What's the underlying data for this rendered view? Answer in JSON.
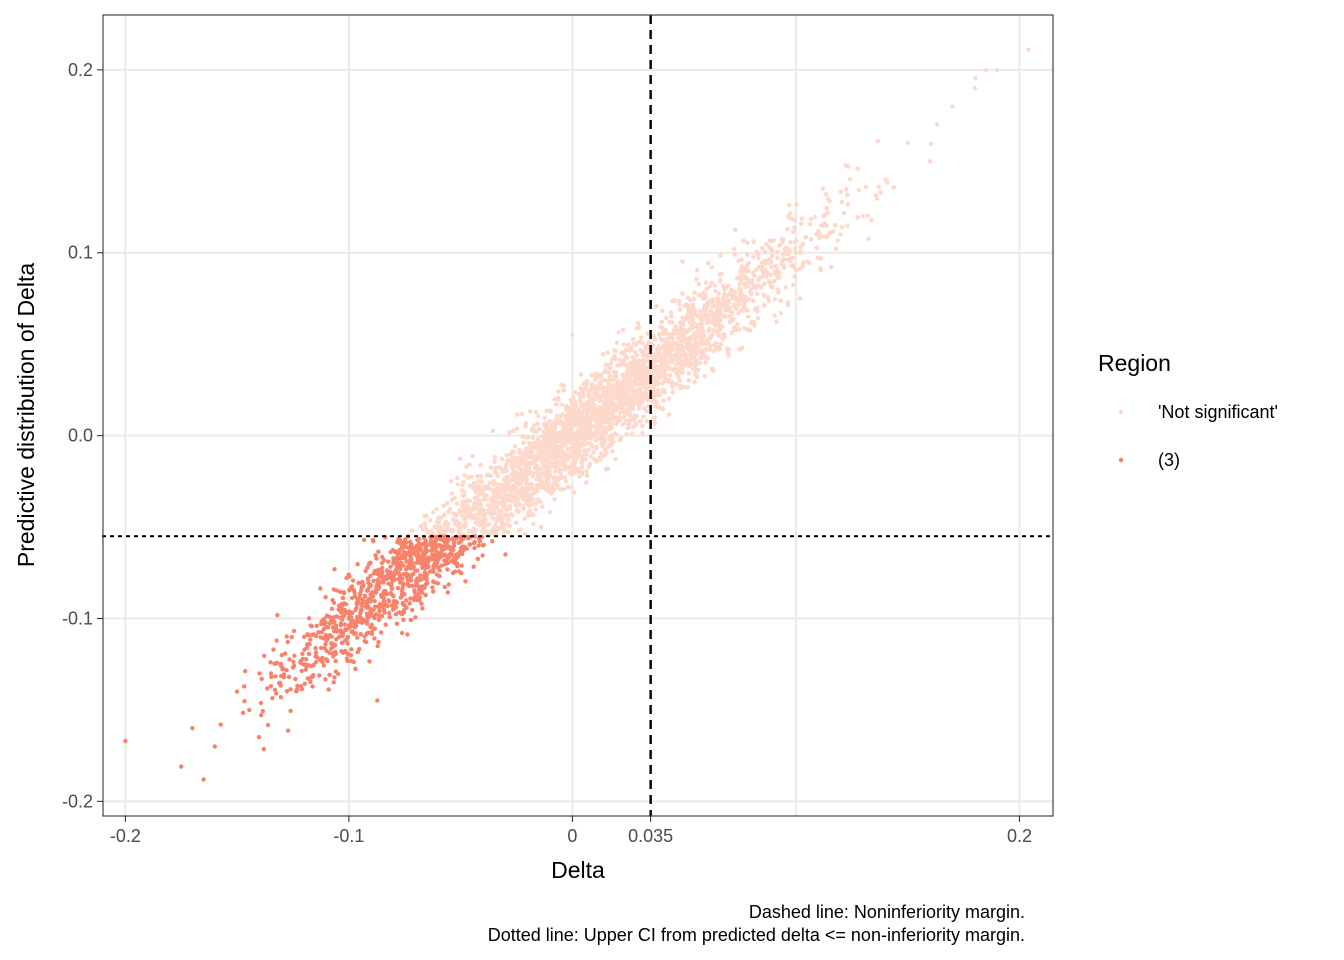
{
  "chart_data": {
    "type": "scatter",
    "xlabel": "Delta",
    "ylabel": "Predictive distribution of Delta",
    "xlim": [
      -0.21,
      0.215
    ],
    "ylim": [
      -0.208,
      0.23
    ],
    "x_ticks": [
      {
        "value": -0.2,
        "label": "-0.2"
      },
      {
        "value": -0.1,
        "label": "-0.1"
      },
      {
        "value": 0,
        "label": "0"
      },
      {
        "value": 0.035,
        "label": "0.035"
      },
      {
        "value": 0.2,
        "label": "0.2"
      }
    ],
    "x_gridlines": [
      -0.2,
      -0.1,
      0,
      0.1,
      0.2
    ],
    "y_ticks": [
      {
        "value": -0.2,
        "label": "-0.2"
      },
      {
        "value": -0.1,
        "label": "-0.1"
      },
      {
        "value": 0.0,
        "label": "0.0"
      },
      {
        "value": 0.1,
        "label": "0.1"
      },
      {
        "value": 0.2,
        "label": "0.2"
      }
    ],
    "grid": true,
    "reference_lines": [
      {
        "orientation": "vertical",
        "value": 0.035,
        "style": "dashed",
        "color": "#000000"
      },
      {
        "orientation": "horizontal",
        "value": -0.055,
        "style": "dotted",
        "color": "#000000"
      }
    ],
    "legend": {
      "title": "Region",
      "placement": "right",
      "entries": [
        {
          "label": "'Not significant'",
          "color": "#FDD9CB"
        },
        {
          "label": "(3)",
          "color": "#F8826A"
        }
      ]
    },
    "series": [
      {
        "name": "'Not significant'",
        "color": "#FDD9CB",
        "distribution": {
          "x_range": [
            -0.08,
            0.2
          ],
          "slope": 1.0,
          "intercept": 0.0,
          "spread": 0.012,
          "count": 7000,
          "condition": "y > -0.055"
        },
        "points": [
          [
            0.204,
            0.211
          ],
          [
            0.19,
            0.2
          ],
          [
            0.185,
            0.2
          ],
          [
            0.18,
            0.19
          ],
          [
            0.17,
            0.18
          ],
          [
            0.16,
            0.15
          ],
          [
            0.15,
            0.16
          ],
          [
            0.14,
            0.14
          ],
          [
            0.13,
            0.12
          ],
          [
            0.12,
            0.11
          ],
          [
            0.1,
            0.1
          ],
          [
            0.08,
            0.08
          ],
          [
            0.06,
            0.05
          ],
          [
            0.04,
            0.04
          ],
          [
            0.02,
            0.02
          ],
          [
            0.0,
            0.0
          ],
          [
            -0.02,
            -0.02
          ],
          [
            -0.04,
            -0.03
          ],
          [
            -0.06,
            -0.05
          ],
          [
            -0.0,
            0.055
          ]
        ]
      },
      {
        "name": "(3)",
        "color": "#F8826A",
        "distribution": {
          "x_range": [
            -0.175,
            -0.02
          ],
          "slope": 1.0,
          "intercept": 0.0,
          "spread": 0.012,
          "count": 1200,
          "condition": "y <= -0.055"
        },
        "points": [
          [
            -0.2,
            -0.167
          ],
          [
            -0.165,
            -0.188
          ],
          [
            -0.175,
            -0.181
          ],
          [
            -0.17,
            -0.16
          ],
          [
            -0.16,
            -0.17
          ],
          [
            -0.15,
            -0.14
          ],
          [
            -0.14,
            -0.13
          ],
          [
            -0.13,
            -0.12
          ],
          [
            -0.12,
            -0.11
          ],
          [
            -0.1,
            -0.1
          ],
          [
            -0.09,
            -0.09
          ],
          [
            -0.08,
            -0.07
          ],
          [
            -0.07,
            -0.065
          ],
          [
            -0.06,
            -0.06
          ],
          [
            -0.05,
            -0.058
          ],
          [
            -0.04,
            -0.06
          ],
          [
            -0.03,
            -0.065
          ]
        ]
      }
    ]
  },
  "caption": {
    "line1": "Dashed line: Noninferiority margin.",
    "line2": "Dotted line: Upper CI from predicted delta <= non-inferiority margin."
  }
}
